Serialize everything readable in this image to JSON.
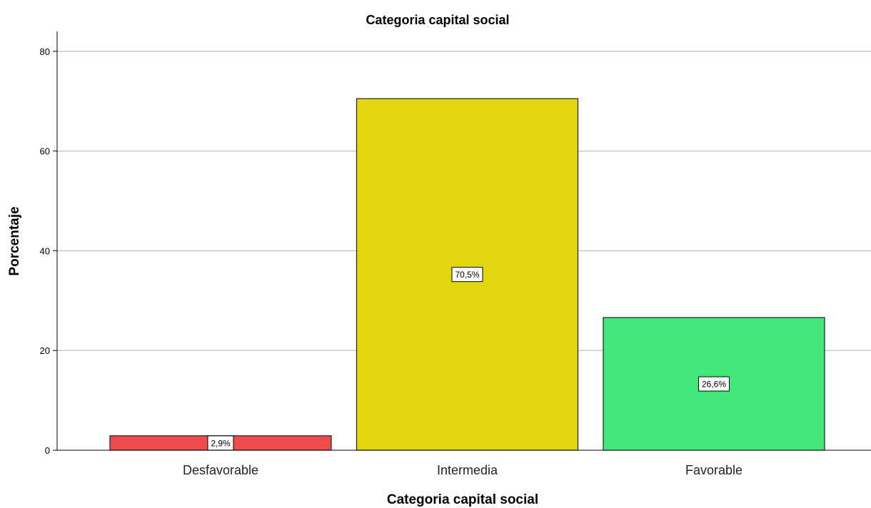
{
  "chart_data": {
    "type": "bar",
    "title": "Categoria capital social",
    "xlabel": "Categoria capital social",
    "ylabel": "Porcentaje",
    "categories": [
      "Desfavorable",
      "Intermedia",
      "Favorable"
    ],
    "values": [
      2.9,
      70.5,
      26.6
    ],
    "data_labels": [
      "2,9%",
      "70,5%",
      "26,6%"
    ],
    "colors": [
      "#ee4c4c",
      "#e1d60f",
      "#42e87a"
    ],
    "ylim": [
      0,
      84
    ],
    "yticks": [
      0,
      20,
      40,
      60,
      80
    ],
    "grid": true,
    "legend": "none"
  }
}
